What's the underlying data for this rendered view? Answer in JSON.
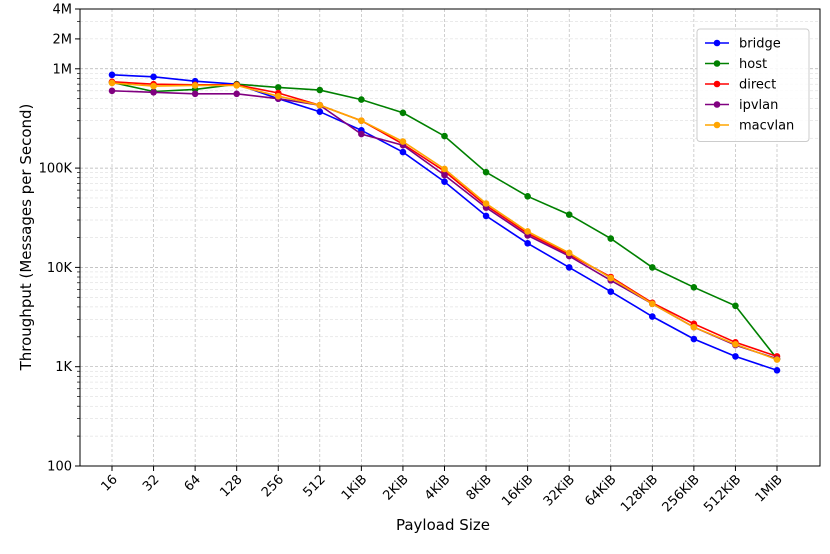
{
  "chart_data": {
    "type": "line",
    "xlabel": "Payload Size",
    "ylabel": "Throughput (Messages per Second)",
    "y_scale": "log",
    "ylim": [
      100,
      4000000
    ],
    "y_ticks": [
      {
        "value": 100,
        "label": "100"
      },
      {
        "value": 1000,
        "label": "1K"
      },
      {
        "value": 10000,
        "label": "10K"
      },
      {
        "value": 100000,
        "label": "100K"
      },
      {
        "value": 1000000,
        "label": "1M"
      },
      {
        "value": 2000000,
        "label": "2M"
      },
      {
        "value": 4000000,
        "label": "4M"
      }
    ],
    "categories": [
      "16",
      "32",
      "64",
      "128",
      "256",
      "512",
      "1KiB",
      "2KiB",
      "4KiB",
      "8KiB",
      "16KiB",
      "32KiB",
      "64KiB",
      "128KiB",
      "256KiB",
      "512KiB",
      "1MiB"
    ],
    "grid": true,
    "legend_position": "top-right",
    "series": [
      {
        "name": "bridge",
        "color": "#0000ff",
        "values": [
          870000,
          830000,
          750000,
          700000,
          500000,
          370000,
          240000,
          145000,
          73000,
          33000,
          17500,
          10000,
          5700,
          3200,
          1900,
          1270,
          920
        ]
      },
      {
        "name": "host",
        "color": "#008000",
        "values": [
          730000,
          590000,
          620000,
          700000,
          650000,
          610000,
          490000,
          360000,
          210000,
          91000,
          52000,
          34000,
          19500,
          10000,
          6300,
          4100,
          1200
        ]
      },
      {
        "name": "direct",
        "color": "#ff0000",
        "values": [
          740000,
          700000,
          690000,
          690000,
          570000,
          430000,
          300000,
          175000,
          93000,
          42000,
          22000,
          13500,
          8000,
          4400,
          2700,
          1760,
          1270
        ]
      },
      {
        "name": "ipvlan",
        "color": "#800080",
        "values": [
          600000,
          580000,
          560000,
          560000,
          500000,
          430000,
          220000,
          170000,
          85000,
          40000,
          21000,
          13000,
          7400,
          4300,
          2500,
          1650,
          1200
        ]
      },
      {
        "name": "macvlan",
        "color": "#ffa500",
        "values": [
          720000,
          670000,
          680000,
          680000,
          530000,
          430000,
          300000,
          185000,
          98000,
          44000,
          23000,
          14000,
          7800,
          4300,
          2500,
          1680,
          1180
        ]
      }
    ]
  }
}
